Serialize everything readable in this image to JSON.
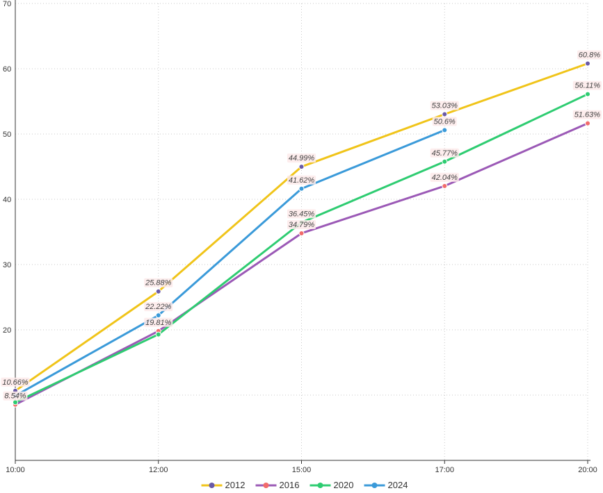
{
  "chart_data": {
    "type": "line",
    "categories": [
      "10:00",
      "12:00",
      "15:00",
      "17:00",
      "20:00"
    ],
    "ylim": [
      0,
      70
    ],
    "yticks": [
      10,
      20,
      30,
      40,
      50,
      60,
      70
    ],
    "ytick_labels": [
      "",
      "20",
      "30",
      "40",
      "50",
      "60",
      "70"
    ],
    "grid": true,
    "legend_position": "bottom-center",
    "series": [
      {
        "name": "2012",
        "line_color": "#f0c419",
        "marker_color": "#6a5aa6",
        "values": [
          10.66,
          25.88,
          44.99,
          53.03,
          60.8
        ],
        "labels": [
          "10.66%",
          "25.88%",
          "44.99%",
          "53.03%",
          "60.8%"
        ]
      },
      {
        "name": "2016",
        "line_color": "#9b59b6",
        "marker_color": "#f26b6b",
        "values": [
          8.54,
          19.81,
          34.79,
          42.04,
          51.63
        ],
        "labels": [
          "8.54%",
          "19.81%",
          "34.79%",
          "42.04%",
          "51.63%"
        ]
      },
      {
        "name": "2020",
        "line_color": "#2ecc71",
        "marker_color": "#2ecc71",
        "values": [
          8.9,
          19.3,
          36.45,
          45.77,
          56.11
        ],
        "labels": [
          "",
          "",
          "36.45%",
          "45.77%",
          "56.11%"
        ]
      },
      {
        "name": "2024",
        "line_color": "#3a9ad9",
        "marker_color": "#3a9ad9",
        "values": [
          9.9,
          22.22,
          41.62,
          50.6,
          null
        ],
        "labels": [
          "",
          "22.22%",
          "41.62%",
          "50.6%",
          ""
        ]
      }
    ]
  }
}
